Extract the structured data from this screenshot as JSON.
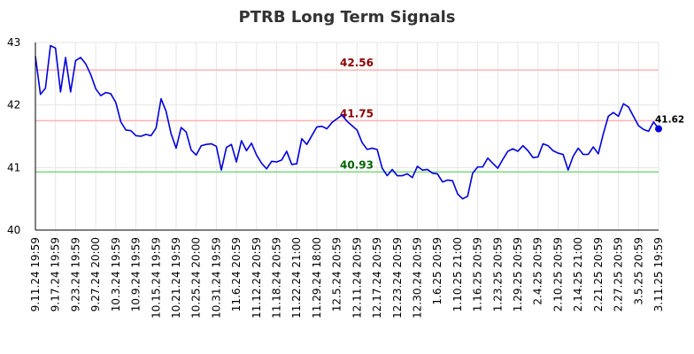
{
  "chart_data": {
    "type": "line",
    "title": "PTRB Long Term Signals",
    "xlabel": "",
    "ylabel": "",
    "ylim": [
      40,
      43
    ],
    "yticks": [
      "40",
      "41",
      "42",
      "43"
    ],
    "grid": true,
    "xticks": [
      "9.11.24 19:59",
      "9.17.24 19:59",
      "9.23.24 19:59",
      "9.27.24 20:00",
      "10.3.24 19:59",
      "10.9.24 19:59",
      "10.15.24 19:59",
      "10.21.24 19:59",
      "10.25.24 20:00",
      "10.31.24 19:59",
      "11.6.24 20:59",
      "11.12.24 20:59",
      "11.18.24 20:59",
      "11.22.24 21:00",
      "11.29.24 18:00",
      "12.5.24 20:59",
      "12.11.24 20:59",
      "12.17.24 20:59",
      "12.23.24 20:59",
      "12.30.24 20:59",
      "1.6.25 20:59",
      "1.10.25 21:00",
      "1.16.25 20:59",
      "1.23.25 20:59",
      "1.29.25 20:59",
      "2.4.25 20:59",
      "2.10.25 20:59",
      "2.14.25 21:00",
      "2.21.25 20:59",
      "2.27.25 20:59",
      "3.5.25 20:59",
      "3.11.25 19:59"
    ],
    "levels": [
      {
        "value": 42.56,
        "label": "42.56",
        "line_color": "#ffb3b3",
        "text_color": "#8b0000"
      },
      {
        "value": 41.75,
        "label": "41.75",
        "line_color": "#ffb3b3",
        "text_color": "#8b0000"
      },
      {
        "value": 40.93,
        "label": "40.93",
        "line_color": "#7fd87f",
        "text_color": "#006400"
      }
    ],
    "series": [
      {
        "color": "#0000dd",
        "last_value_label": "41.62",
        "values": [
          42.78,
          42.17,
          42.27,
          42.95,
          42.91,
          42.21,
          42.76,
          42.21,
          42.71,
          42.76,
          42.66,
          42.49,
          42.26,
          42.15,
          42.2,
          42.18,
          42.04,
          41.73,
          41.6,
          41.59,
          41.51,
          41.5,
          41.53,
          41.51,
          41.63,
          42.1,
          41.9,
          41.54,
          41.31,
          41.64,
          41.57,
          41.28,
          41.2,
          41.35,
          41.37,
          41.38,
          41.34,
          40.96,
          41.32,
          41.37,
          41.09,
          41.43,
          41.27,
          41.39,
          41.2,
          41.07,
          40.98,
          41.1,
          41.09,
          41.12,
          41.26,
          41.05,
          41.06,
          41.46,
          41.37,
          41.51,
          41.65,
          41.66,
          41.62,
          41.72,
          41.78,
          41.84,
          41.74,
          41.67,
          41.6,
          41.4,
          41.29,
          41.31,
          41.29,
          40.99,
          40.87,
          40.97,
          40.87,
          40.87,
          40.9,
          40.84,
          41.02,
          40.96,
          40.97,
          40.91,
          40.9,
          40.77,
          40.8,
          40.79,
          40.58,
          40.5,
          40.54,
          40.91,
          41.01,
          41.01,
          41.15,
          41.07,
          40.99,
          41.13,
          41.26,
          41.3,
          41.26,
          41.35,
          41.27,
          41.16,
          41.17,
          41.38,
          41.35,
          41.27,
          41.23,
          41.21,
          40.96,
          41.18,
          41.31,
          41.21,
          41.21,
          41.33,
          41.22,
          41.54,
          41.82,
          41.88,
          41.82,
          42.02,
          41.97,
          41.82,
          41.67,
          41.61,
          41.58,
          41.73,
          41.62
        ]
      }
    ]
  }
}
